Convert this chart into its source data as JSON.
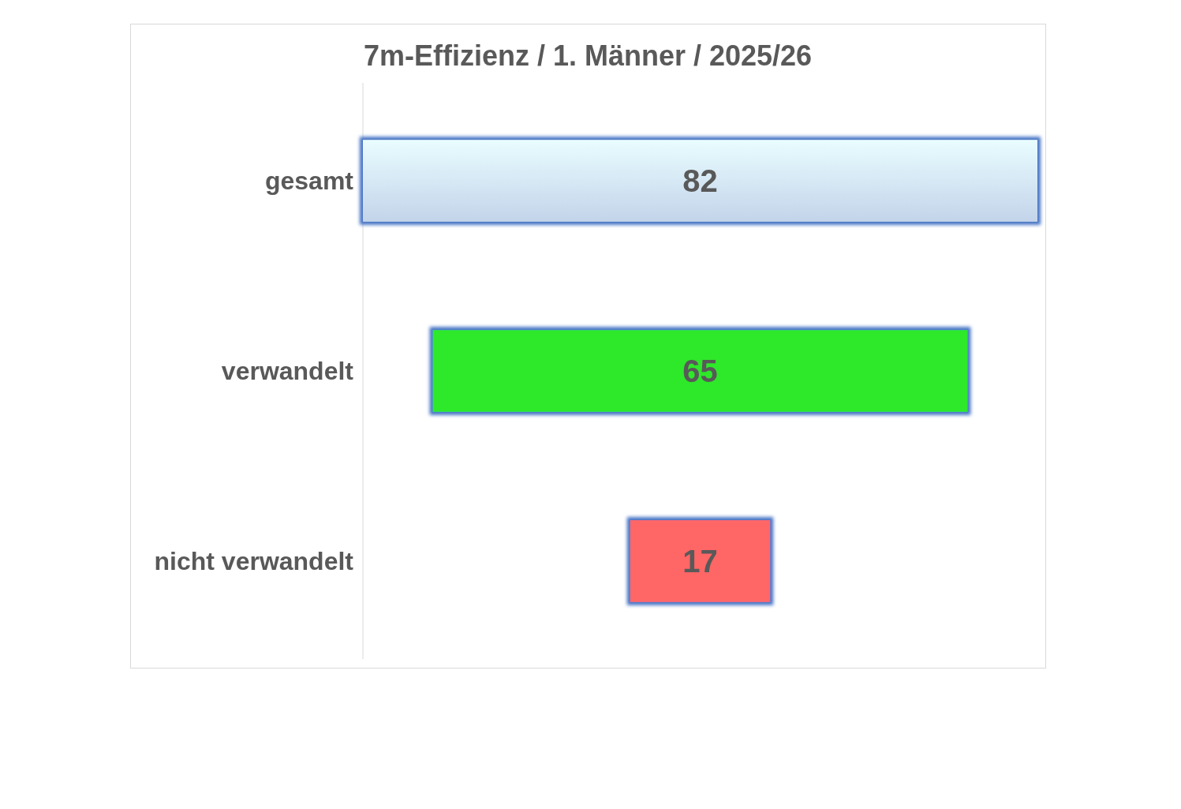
{
  "chart_data": {
    "type": "other",
    "title": "7m-Effizienz / 1. Männer / 2025/26",
    "categories": [
      "gesamt",
      "verwandelt",
      "nicht verwandelt"
    ],
    "values": [
      82,
      65,
      17
    ],
    "colors": [
      "#c3d4ea",
      "#2ee82a",
      "#ff6666"
    ],
    "data_labels": true
  }
}
